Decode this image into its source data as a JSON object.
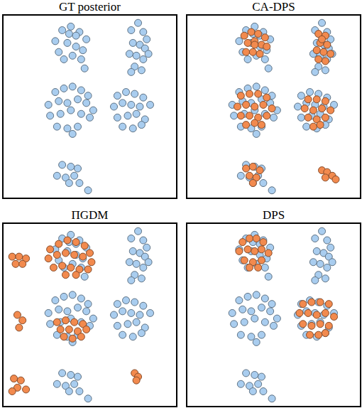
{
  "chart_data": [
    {
      "type": "scatter",
      "title": "GT posterior",
      "xlim": [
        0,
        10
      ],
      "ylim": [
        0,
        10
      ],
      "tick_labels": false,
      "grid": false,
      "series": [
        {
          "color": "#a9cdef",
          "marker": "circle",
          "x": [
            3.0,
            3.4,
            3.9,
            4.4,
            4.8,
            3.2,
            3.7,
            4.2,
            4.6,
            3.5,
            4.0,
            4.5,
            3.8,
            4.2,
            4.7,
            7.8,
            7.4,
            8.1,
            8.3,
            7.5,
            7.9,
            8.2,
            7.3,
            7.7,
            8.1,
            7.6,
            8.0,
            7.4,
            8.4,
            3.0,
            3.5,
            4.0,
            4.5,
            4.9,
            2.6,
            3.2,
            3.7,
            4.3,
            4.8,
            5.2,
            2.7,
            3.3,
            3.9,
            4.5,
            5.0,
            3.1,
            3.7,
            4.3,
            4.0,
            6.6,
            7.1,
            7.6,
            8.1,
            6.4,
            6.9,
            7.4,
            7.9,
            8.5,
            6.6,
            7.2,
            7.7,
            8.2,
            6.9,
            7.5,
            8.0,
            3.4,
            3.9,
            4.3,
            3.1,
            3.6,
            4.1,
            3.8,
            4.4,
            4.9
          ],
          "y": [
            8.6,
            9.2,
            9.4,
            9.1,
            8.7,
            8.0,
            8.5,
            8.3,
            8.1,
            7.6,
            7.8,
            7.6,
            9.0,
            8.9,
            7.1,
            9.6,
            9.2,
            9.1,
            8.7,
            8.5,
            8.4,
            8.2,
            7.9,
            7.8,
            7.6,
            7.2,
            7.0,
            6.9,
            7.9,
            5.8,
            6.0,
            6.1,
            5.9,
            5.6,
            5.1,
            5.3,
            5.2,
            5.4,
            5.2,
            4.8,
            4.5,
            4.6,
            4.8,
            4.6,
            4.4,
            3.9,
            3.8,
            3.9,
            3.5,
            5.6,
            5.8,
            5.7,
            5.5,
            5.0,
            5.2,
            5.1,
            5.0,
            5.1,
            4.4,
            4.5,
            4.6,
            4.3,
            3.9,
            3.8,
            4.0,
            1.8,
            1.7,
            1.6,
            1.2,
            1.1,
            1.2,
            0.8,
            0.8,
            0.4
          ]
        }
      ]
    },
    {
      "type": "scatter",
      "title": "CA-DPS",
      "xlim": [
        0,
        10
      ],
      "ylim": [
        0,
        10
      ],
      "tick_labels": false,
      "grid": false,
      "series": [
        {
          "color": "#a9cdef",
          "marker": "circle",
          "x": [
            3.0,
            3.4,
            3.9,
            4.4,
            4.8,
            3.2,
            3.7,
            4.2,
            4.6,
            3.5,
            4.0,
            4.5,
            3.8,
            4.2,
            4.7,
            7.8,
            7.4,
            8.1,
            8.3,
            7.5,
            7.9,
            8.2,
            7.3,
            7.7,
            8.1,
            7.6,
            8.0,
            7.4,
            8.4,
            3.0,
            3.5,
            4.0,
            4.5,
            4.9,
            2.6,
            3.2,
            3.7,
            4.3,
            4.8,
            5.2,
            2.7,
            3.3,
            3.9,
            4.5,
            5.0,
            3.1,
            3.7,
            4.3,
            4.0,
            6.6,
            7.1,
            7.6,
            8.1,
            6.4,
            6.9,
            7.4,
            7.9,
            8.5,
            6.6,
            7.2,
            7.7,
            8.2,
            6.9,
            7.5,
            8.0,
            3.4,
            3.9,
            4.3,
            3.1,
            3.6,
            4.1,
            3.8,
            4.4,
            4.9
          ],
          "y": [
            8.6,
            9.2,
            9.4,
            9.1,
            8.7,
            8.0,
            8.5,
            8.3,
            8.1,
            7.6,
            7.8,
            7.6,
            9.0,
            8.9,
            7.1,
            9.6,
            9.2,
            9.1,
            8.7,
            8.5,
            8.4,
            8.2,
            7.9,
            7.8,
            7.6,
            7.2,
            7.0,
            6.9,
            7.9,
            5.8,
            6.0,
            6.1,
            5.9,
            5.6,
            5.1,
            5.3,
            5.2,
            5.4,
            5.2,
            4.8,
            4.5,
            4.6,
            4.8,
            4.6,
            4.4,
            3.9,
            3.8,
            3.9,
            3.5,
            5.6,
            5.8,
            5.7,
            5.5,
            5.0,
            5.2,
            5.1,
            5.0,
            5.1,
            4.4,
            4.5,
            4.6,
            4.3,
            3.9,
            3.8,
            4.0,
            1.8,
            1.7,
            1.6,
            1.2,
            1.1,
            1.2,
            0.8,
            0.8,
            0.4
          ]
        },
        {
          "color": "#f28a4e",
          "marker": "circle",
          "x": [
            3.3,
            3.7,
            4.1,
            4.5,
            3.5,
            3.9,
            4.3,
            4.6,
            3.4,
            3.8,
            4.2,
            3.9,
            7.6,
            8.0,
            7.7,
            8.1,
            7.5,
            7.9,
            8.3,
            7.6,
            8.0,
            7.8,
            3.1,
            3.6,
            4.1,
            4.6,
            2.9,
            3.4,
            3.9,
            4.4,
            4.9,
            3.1,
            3.6,
            4.1,
            4.6,
            3.4,
            3.9,
            4.3,
            7.0,
            7.5,
            8.0,
            6.8,
            7.3,
            7.8,
            8.3,
            7.0,
            7.5,
            8.0,
            7.3,
            7.7,
            3.4,
            3.8,
            4.2,
            3.6,
            4.0,
            3.8,
            7.8,
            8.1,
            8.4,
            8.0,
            8.6
          ],
          "y": [
            8.9,
            9.1,
            9.0,
            8.8,
            8.5,
            8.6,
            8.4,
            8.3,
            8.0,
            8.0,
            7.9,
            8.4,
            9.0,
            8.9,
            8.5,
            8.4,
            8.1,
            8.0,
            7.9,
            7.6,
            7.5,
            8.7,
            5.6,
            5.7,
            5.7,
            5.5,
            5.0,
            5.1,
            5.0,
            5.1,
            4.9,
            4.5,
            4.5,
            4.4,
            4.5,
            4.0,
            4.1,
            4.0,
            5.4,
            5.4,
            5.3,
            4.9,
            4.8,
            4.9,
            4.8,
            4.4,
            4.3,
            4.4,
            3.9,
            4.0,
            1.6,
            1.7,
            1.5,
            1.2,
            1.1,
            0.8,
            1.5,
            1.4,
            1.2,
            1.1,
            1.0
          ]
        }
      ]
    },
    {
      "type": "scatter",
      "title": "ΠGDM",
      "xlim": [
        0,
        10
      ],
      "ylim": [
        0,
        10
      ],
      "tick_labels": false,
      "grid": false,
      "series": [
        {
          "color": "#a9cdef",
          "marker": "circle",
          "x": [
            3.0,
            3.4,
            3.9,
            4.4,
            4.8,
            3.2,
            3.7,
            4.2,
            4.6,
            3.5,
            4.0,
            4.5,
            3.8,
            4.2,
            4.7,
            7.8,
            7.4,
            8.1,
            8.3,
            7.5,
            7.9,
            8.2,
            7.3,
            7.7,
            8.1,
            7.6,
            8.0,
            7.4,
            8.4,
            3.0,
            3.5,
            4.0,
            4.5,
            4.9,
            2.6,
            3.2,
            3.7,
            4.3,
            4.8,
            5.2,
            2.7,
            3.3,
            3.9,
            4.5,
            5.0,
            3.1,
            3.7,
            4.3,
            4.0,
            6.6,
            7.1,
            7.6,
            8.1,
            6.4,
            6.9,
            7.4,
            7.9,
            8.5,
            6.6,
            7.2,
            7.7,
            8.2,
            6.9,
            7.5,
            8.0,
            3.4,
            3.9,
            4.3,
            3.1,
            3.6,
            4.1,
            3.8,
            4.4,
            4.9
          ],
          "y": [
            8.6,
            9.2,
            9.4,
            9.1,
            8.7,
            8.0,
            8.5,
            8.3,
            8.1,
            7.6,
            7.8,
            7.6,
            9.0,
            8.9,
            7.1,
            9.6,
            9.2,
            9.1,
            8.7,
            8.5,
            8.4,
            8.2,
            7.9,
            7.8,
            7.6,
            7.2,
            7.0,
            6.9,
            7.9,
            5.8,
            6.0,
            6.1,
            5.9,
            5.6,
            5.1,
            5.3,
            5.2,
            5.4,
            5.2,
            4.8,
            4.5,
            4.6,
            4.8,
            4.6,
            4.4,
            3.9,
            3.8,
            3.9,
            3.5,
            5.6,
            5.8,
            5.7,
            5.5,
            5.0,
            5.2,
            5.1,
            5.0,
            5.1,
            4.4,
            4.5,
            4.6,
            4.3,
            3.9,
            3.8,
            4.0,
            1.8,
            1.7,
            1.6,
            1.2,
            1.1,
            1.2,
            0.8,
            0.8,
            0.4
          ]
        },
        {
          "color": "#f28a4e",
          "marker": "circle",
          "x": [
            2.7,
            3.2,
            3.7,
            4.2,
            4.7,
            5.0,
            2.6,
            3.1,
            3.6,
            4.1,
            4.6,
            5.1,
            2.9,
            3.4,
            3.9,
            4.4,
            4.9,
            3.6,
            4.2,
            0.5,
            0.9,
            1.3,
            0.7,
            1.1,
            0.8,
            1.1,
            0.9,
            0.6,
            1.0,
            0.8,
            1.3,
            0.5,
            3.1,
            3.6,
            4.1,
            4.6,
            3.3,
            3.8,
            4.3,
            4.8,
            3.5,
            4.0,
            4.5,
            7.6,
            7.8,
            7.7
          ],
          "y": [
            8.6,
            8.9,
            9.1,
            9.0,
            8.8,
            8.4,
            8.1,
            8.3,
            8.4,
            8.3,
            8.2,
            7.9,
            7.6,
            7.7,
            7.6,
            7.5,
            7.5,
            7.2,
            7.2,
            8.2,
            8.2,
            8.1,
            7.8,
            7.8,
            5.0,
            4.7,
            4.3,
            1.5,
            1.4,
            1.0,
            0.9,
            0.8,
            4.6,
            4.7,
            4.6,
            4.5,
            4.2,
            4.2,
            4.1,
            4.2,
            3.8,
            3.7,
            3.8,
            1.8,
            1.6,
            1.4
          ]
        }
      ]
    },
    {
      "type": "scatter",
      "title": "DPS",
      "xlim": [
        0,
        10
      ],
      "ylim": [
        0,
        10
      ],
      "tick_labels": false,
      "grid": false,
      "series": [
        {
          "color": "#a9cdef",
          "marker": "circle",
          "x": [
            3.0,
            3.4,
            3.9,
            4.4,
            4.8,
            3.2,
            3.7,
            4.2,
            4.6,
            3.5,
            4.0,
            4.5,
            3.8,
            4.2,
            4.7,
            7.8,
            7.4,
            8.1,
            8.3,
            7.5,
            7.9,
            8.2,
            7.3,
            7.7,
            8.1,
            7.6,
            8.0,
            7.4,
            8.4,
            3.0,
            3.5,
            4.0,
            4.5,
            4.9,
            2.6,
            3.2,
            3.7,
            4.3,
            4.8,
            5.2,
            2.7,
            3.3,
            3.9,
            4.5,
            5.0,
            3.1,
            3.7,
            4.3,
            4.0,
            6.6,
            7.1,
            7.6,
            8.1,
            6.4,
            6.9,
            7.4,
            7.9,
            8.5,
            6.6,
            7.2,
            7.7,
            8.2,
            6.9,
            7.5,
            8.0,
            3.4,
            3.9,
            4.3,
            3.1,
            3.6,
            4.1,
            3.8,
            4.4,
            4.9
          ],
          "y": [
            8.6,
            9.2,
            9.4,
            9.1,
            8.7,
            8.0,
            8.5,
            8.3,
            8.1,
            7.6,
            7.8,
            7.6,
            9.0,
            8.9,
            7.1,
            9.6,
            9.2,
            9.1,
            8.7,
            8.5,
            8.4,
            8.2,
            7.9,
            7.8,
            7.6,
            7.2,
            7.0,
            6.9,
            7.9,
            5.8,
            6.0,
            6.1,
            5.9,
            5.6,
            5.1,
            5.3,
            5.2,
            5.4,
            5.2,
            4.8,
            4.5,
            4.6,
            4.8,
            4.6,
            4.4,
            3.9,
            3.8,
            3.9,
            3.5,
            5.6,
            5.8,
            5.7,
            5.5,
            5.0,
            5.2,
            5.1,
            5.0,
            5.1,
            4.4,
            4.5,
            4.6,
            4.3,
            3.9,
            3.8,
            4.0,
            1.8,
            1.7,
            1.6,
            1.2,
            1.1,
            1.2,
            0.8,
            0.8,
            0.4
          ]
        },
        {
          "color": "#f28a4e",
          "marker": "circle",
          "x": [
            3.2,
            3.6,
            4.0,
            4.4,
            3.0,
            3.5,
            3.9,
            4.3,
            4.7,
            3.3,
            3.8,
            4.3,
            3.6,
            4.1,
            6.7,
            7.2,
            7.7,
            8.2,
            6.5,
            7.0,
            7.5,
            8.0,
            8.5,
            6.7,
            7.2,
            7.7,
            8.2,
            7.1,
            7.6,
            8.0
          ],
          "y": [
            9.0,
            9.2,
            9.2,
            9.0,
            8.5,
            8.6,
            8.5,
            8.6,
            8.4,
            8.0,
            7.9,
            8.0,
            7.6,
            7.6,
            5.6,
            5.7,
            5.7,
            5.6,
            5.1,
            5.1,
            5.0,
            5.1,
            4.9,
            4.5,
            4.4,
            4.5,
            4.4,
            3.9,
            3.9,
            4.0
          ]
        }
      ]
    }
  ]
}
